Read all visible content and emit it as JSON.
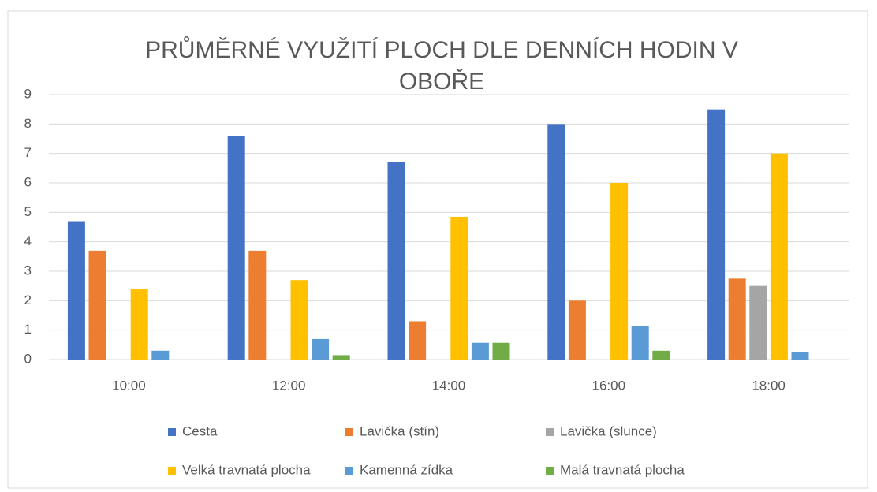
{
  "chart_data": {
    "type": "bar",
    "title": "PRŮMĚRNÉ VYUŽITÍ PLOCH DLE DENNÍCH HODIN V OBOŘE",
    "categories": [
      "10:00",
      "12:00",
      "14:00",
      "16:00",
      "18:00"
    ],
    "series": [
      {
        "name": "Cesta",
        "color": "#4472c4",
        "values": [
          4.7,
          7.6,
          6.7,
          8.0,
          8.5
        ]
      },
      {
        "name": "Lavička (stín)",
        "color": "#ed7d31",
        "values": [
          3.7,
          3.7,
          1.3,
          2.0,
          2.75
        ]
      },
      {
        "name": "Lavička (slunce)",
        "color": "#a5a5a5",
        "values": [
          0,
          0,
          0,
          0,
          2.5
        ]
      },
      {
        "name": "Velká travnatá plocha",
        "color": "#ffc000",
        "values": [
          2.4,
          2.7,
          4.85,
          6.0,
          7.0
        ]
      },
      {
        "name": "Kamenná zídka",
        "color": "#5b9bd5",
        "values": [
          0.3,
          0.7,
          0.57,
          1.15,
          0.25
        ]
      },
      {
        "name": "Malá travnatá plocha",
        "color": "#70ad47",
        "values": [
          0,
          0.15,
          0.57,
          0.3,
          0
        ]
      }
    ],
    "ylim": [
      0,
      9
    ],
    "yticks": [
      0,
      1,
      2,
      3,
      4,
      5,
      6,
      7,
      8,
      9
    ],
    "grid": true,
    "legend": "bottom"
  }
}
